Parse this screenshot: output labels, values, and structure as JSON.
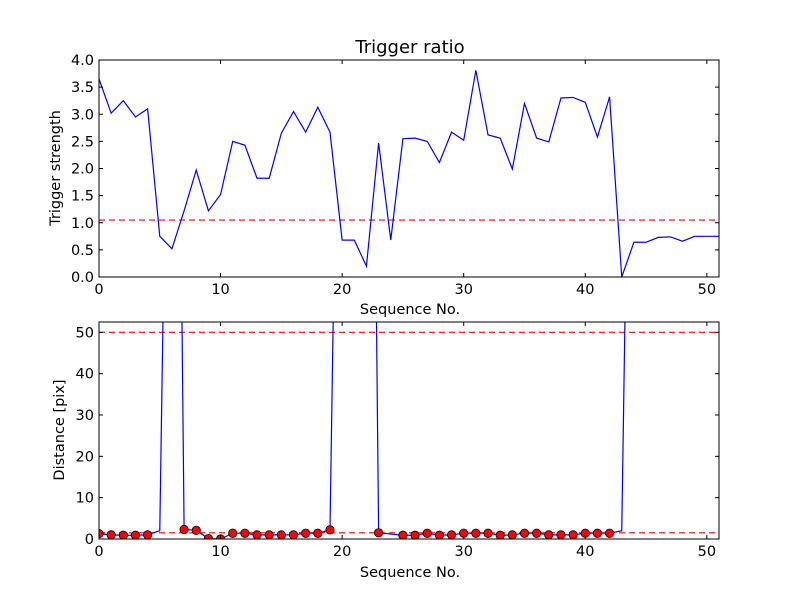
{
  "chart_data": [
    {
      "type": "line",
      "title": "Trigger ratio",
      "xlabel": "Sequence No.",
      "ylabel": "Trigger strength",
      "xlim": [
        0,
        51
      ],
      "ylim": [
        0,
        4.0
      ],
      "x_ticks": [
        0,
        10,
        20,
        30,
        40,
        50
      ],
      "y_ticks": [
        0.0,
        0.5,
        1.0,
        1.5,
        2.0,
        2.5,
        3.0,
        3.5,
        4.0
      ],
      "y_tick_format": 1,
      "grid": false,
      "colors": {
        "line": "#0000ff",
        "threshold": "#ff0000"
      },
      "series": [
        {
          "x": [
            0,
            1,
            2,
            3,
            4,
            5,
            6,
            7,
            8,
            9,
            10,
            11,
            12,
            13,
            14,
            15,
            16,
            17,
            18,
            19,
            20,
            21,
            22,
            23,
            24,
            25,
            26,
            27,
            28,
            29,
            30,
            31,
            32,
            33,
            34,
            35,
            36,
            37,
            38,
            39,
            40,
            41,
            42,
            43,
            44,
            45,
            46,
            47,
            48,
            49,
            50,
            51
          ],
          "y": [
            3.65,
            3.02,
            3.25,
            2.95,
            3.1,
            0.75,
            0.52,
            1.22,
            1.97,
            1.22,
            1.52,
            2.5,
            2.43,
            1.82,
            1.82,
            2.65,
            3.05,
            2.67,
            3.13,
            2.67,
            0.68,
            0.68,
            0.2,
            2.47,
            0.68,
            2.55,
            2.56,
            2.5,
            2.11,
            2.67,
            2.52,
            3.81,
            2.62,
            2.56,
            1.99,
            3.2,
            2.56,
            2.49,
            3.3,
            3.31,
            3.22,
            2.58,
            3.32,
            0.0,
            0.64,
            0.64,
            0.73,
            0.74,
            0.66,
            0.75,
            0.75,
            0.75
          ]
        }
      ],
      "threshold": 1.05
    },
    {
      "type": "line",
      "title": "",
      "xlabel": "Sequence No.",
      "ylabel": "Distance [pix]",
      "xlim": [
        0,
        51
      ],
      "ylim": [
        0,
        52.5
      ],
      "x_ticks": [
        0,
        10,
        20,
        30,
        40,
        50
      ],
      "y_ticks": [
        0,
        10,
        20,
        30,
        40,
        50
      ],
      "y_tick_format": 0,
      "grid": false,
      "colors": {
        "line": "#0000ff",
        "threshold": "#ff0000",
        "marker": "#ff0000"
      },
      "series": [
        {
          "x": [
            0,
            1,
            2,
            3,
            4,
            5,
            5.3,
            6.8,
            7,
            8,
            9,
            10,
            11,
            12,
            13,
            14,
            15,
            16,
            17,
            18,
            19,
            19.3,
            22.8,
            23,
            24,
            25,
            26,
            27,
            28,
            29,
            30,
            31,
            32,
            33,
            34,
            35,
            36,
            37,
            38,
            39,
            40,
            41,
            42,
            43,
            43.3
          ],
          "y": [
            1.3,
            1.0,
            0.9,
            0.9,
            1.0,
            2.0,
            60,
            60,
            2.3,
            2.1,
            0.1,
            0.0,
            1.4,
            1.4,
            1.0,
            1.0,
            1.0,
            1.0,
            1.4,
            1.4,
            2.2,
            60,
            60,
            1.5,
            1.2,
            0.9,
            0.9,
            1.4,
            0.9,
            1.0,
            1.4,
            1.4,
            1.4,
            0.9,
            1.0,
            1.4,
            1.4,
            1.0,
            1.0,
            1.0,
            1.4,
            1.4,
            1.4,
            2.0,
            60
          ]
        }
      ],
      "markers": {
        "x": [
          0,
          1,
          2,
          3,
          4,
          7,
          8,
          9,
          10,
          11,
          12,
          13,
          14,
          15,
          16,
          17,
          18,
          19,
          23,
          25,
          26,
          27,
          28,
          29,
          30,
          31,
          32,
          33,
          34,
          35,
          36,
          37,
          38,
          39,
          40,
          41,
          42
        ],
        "y": [
          1.3,
          1.0,
          0.9,
          0.9,
          1.0,
          2.3,
          2.1,
          0.1,
          0.0,
          1.4,
          1.4,
          1.0,
          1.0,
          1.0,
          1.0,
          1.4,
          1.4,
          2.2,
          1.5,
          0.9,
          0.9,
          1.4,
          0.9,
          1.0,
          1.4,
          1.4,
          1.4,
          0.9,
          1.0,
          1.4,
          1.4,
          1.0,
          1.0,
          1.0,
          1.4,
          1.4,
          1.4
        ]
      },
      "thresholds": [
        50,
        1.5
      ]
    }
  ]
}
